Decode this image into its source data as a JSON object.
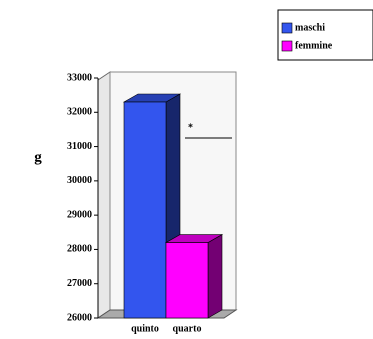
{
  "chart_data": {
    "type": "bar3d",
    "y_label": "g",
    "annotation": "*",
    "categories": [
      "quinto",
      "quarto"
    ],
    "series": [
      {
        "name": "maschi",
        "color": "#3355ee",
        "values": [
          32300,
          null
        ]
      },
      {
        "name": "femmine",
        "color": "#ff00ff",
        "values": [
          null,
          28200
        ]
      }
    ],
    "ylim": [
      26000,
      33000
    ],
    "yticks": [
      26000,
      27000,
      28000,
      29000,
      30000,
      31000,
      32000,
      33000
    ],
    "legend": "top-right"
  }
}
